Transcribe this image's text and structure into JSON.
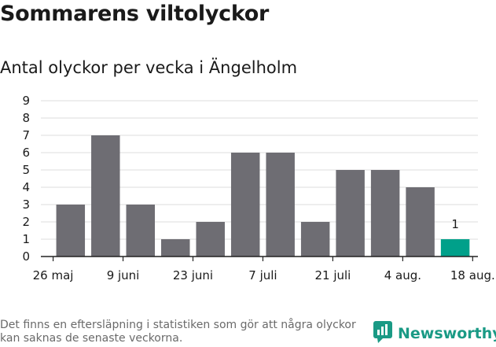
{
  "title": "Sommarens viltolyckor",
  "subtitle": "Antal olyckor per vecka i Ängelholm",
  "footnote": "Det finns en eftersläpning i statistiken som gör att några olyckor kan saknas de senaste veckorna.",
  "brand": {
    "name": "Newsworthy",
    "color": "#1a9a85",
    "icon": "newsworthy-logo-icon"
  },
  "colors": {
    "bar": "#6e6d73",
    "highlight": "#00a08a",
    "grid": "#dddddd",
    "axis": "#222222"
  },
  "chart_data": {
    "type": "bar",
    "title": "Antal olyckor per vecka i Ängelholm",
    "xlabel": "",
    "ylabel": "",
    "ylim": [
      0,
      9
    ],
    "yticks": [
      0,
      1,
      2,
      3,
      4,
      5,
      6,
      7,
      8,
      9
    ],
    "grid": true,
    "xtick_labels": [
      "26 maj",
      "9 juni",
      "23 juni",
      "7 juli",
      "21 juli",
      "4 aug.",
      "18 aug."
    ],
    "values": [
      3,
      7,
      3,
      1,
      2,
      6,
      6,
      2,
      5,
      5,
      4,
      1
    ],
    "highlight_index": 11,
    "data_labels": [
      {
        "index": 11,
        "text": "1"
      }
    ]
  }
}
